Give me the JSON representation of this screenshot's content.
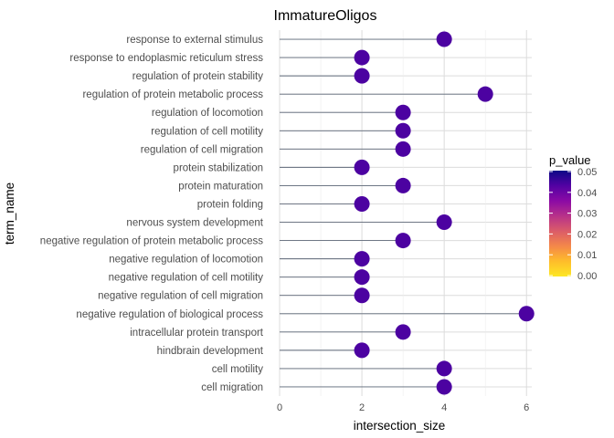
{
  "chart_data": {
    "type": "lollipop",
    "title": "ImmatureOligos",
    "xlabel": "intersection_size",
    "ylabel": "term_name",
    "xlim": [
      0,
      6.35
    ],
    "x_ticks": [
      0,
      2,
      4,
      6
    ],
    "grid": true,
    "legend": {
      "title": "p_value",
      "position": "right",
      "range": [
        0.0,
        0.05
      ],
      "ticks": [
        "0.05",
        "0.04",
        "0.03",
        "0.02",
        "0.01",
        "0.00"
      ],
      "colors": [
        "#fde725",
        "#febd2a",
        "#f48849",
        "#db5c68",
        "#b83289",
        "#8b0aa5",
        "#5302a3",
        "#0d0887"
      ]
    },
    "point_color": "#4c02a1",
    "terms": [
      {
        "term": "response to external stimulus",
        "intersection_size": 4
      },
      {
        "term": "response to endoplasmic reticulum stress",
        "intersection_size": 2
      },
      {
        "term": "regulation of protein stability",
        "intersection_size": 2
      },
      {
        "term": "regulation of protein metabolic process",
        "intersection_size": 5
      },
      {
        "term": "regulation of locomotion",
        "intersection_size": 3
      },
      {
        "term": "regulation of cell motility",
        "intersection_size": 3
      },
      {
        "term": "regulation of cell migration",
        "intersection_size": 3
      },
      {
        "term": "protein stabilization",
        "intersection_size": 2
      },
      {
        "term": "protein maturation",
        "intersection_size": 3
      },
      {
        "term": "protein folding",
        "intersection_size": 2
      },
      {
        "term": "nervous system development",
        "intersection_size": 4
      },
      {
        "term": "negative regulation of protein metabolic process",
        "intersection_size": 3
      },
      {
        "term": "negative regulation of locomotion",
        "intersection_size": 2
      },
      {
        "term": "negative regulation of cell motility",
        "intersection_size": 2
      },
      {
        "term": "negative regulation of cell migration",
        "intersection_size": 2
      },
      {
        "term": "negative regulation of biological process",
        "intersection_size": 6
      },
      {
        "term": "intracellular protein transport",
        "intersection_size": 3
      },
      {
        "term": "hindbrain development",
        "intersection_size": 2
      },
      {
        "term": "cell motility",
        "intersection_size": 4
      },
      {
        "term": "cell migration",
        "intersection_size": 4
      }
    ]
  }
}
